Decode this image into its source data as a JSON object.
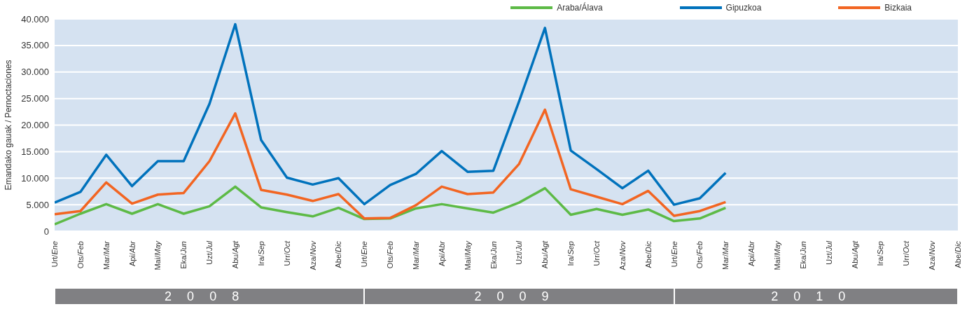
{
  "chart_data": {
    "type": "line",
    "ylabel": "Emandako gauak / Pernoctaciones",
    "categories": [
      "Urt/Ene",
      "Ots/Feb",
      "Mar/Mar",
      "Api/Abr",
      "Mai/May",
      "Eka/Jun",
      "Uzt/Jul",
      "Abu/Agt",
      "Ira/Sep",
      "Urr/Oct",
      "Aza/Nov",
      "Abe/Dic",
      "Urt/Ene",
      "Ots/Feb",
      "Mar/Mar",
      "Api/Abr",
      "Mai/May",
      "Eka/Jun",
      "Uzt/Jul",
      "Abu/Agt",
      "Ira/Sep",
      "Urr/Oct",
      "Aza/Nov",
      "Abe/Dic",
      "Urt/Ene",
      "Ots/Feb",
      "Mar/Mar",
      "Api/Abr",
      "Mai/May",
      "Eka/Jun",
      "Uzt/Jul",
      "Abu/Agt",
      "Ira/Sep",
      "Urr/Oct",
      "Aza/Nov",
      "Abe/Dic"
    ],
    "series": [
      {
        "name": "Araba/Álava",
        "color": "#5dba46",
        "values": [
          1300,
          3300,
          5100,
          3300,
          5100,
          3300,
          4700,
          8400,
          4500,
          3600,
          2800,
          4400,
          2300,
          2400,
          4300,
          5100,
          4300,
          3500,
          5400,
          8100,
          3100,
          4200,
          3100,
          4100,
          1900,
          2400,
          4400,
          null,
          null,
          null,
          null,
          null,
          null,
          null,
          null,
          null
        ]
      },
      {
        "name": "Gipuzkoa",
        "color": "#0072bc",
        "values": [
          5400,
          7400,
          14400,
          8500,
          13200,
          13200,
          24000,
          39000,
          17200,
          10100,
          8800,
          10000,
          5100,
          8700,
          10800,
          15100,
          11200,
          11400,
          24500,
          38300,
          15200,
          11700,
          8100,
          11400,
          5000,
          6200,
          11000,
          null,
          null,
          null,
          null,
          null,
          null,
          null,
          null,
          null
        ]
      },
      {
        "name": "Bizkaia",
        "color": "#f26522",
        "values": [
          3200,
          3800,
          9200,
          5200,
          6900,
          7200,
          13200,
          22200,
          7800,
          6900,
          5700,
          7000,
          2400,
          2500,
          4900,
          8400,
          7000,
          7300,
          12700,
          22900,
          7900,
          6500,
          5100,
          7600,
          2900,
          3800,
          5500,
          null,
          null,
          null,
          null,
          null,
          null,
          null,
          null,
          null
        ]
      }
    ],
    "ylim": [
      0,
      40000
    ],
    "yticks": [
      {
        "value": 0,
        "label": "0"
      },
      {
        "value": 5000,
        "label": "5.000"
      },
      {
        "value": 10000,
        "label": "10.000"
      },
      {
        "value": 15000,
        "label": "15.000"
      },
      {
        "value": 20000,
        "label": "20.000"
      },
      {
        "value": 25000,
        "label": "25.000"
      },
      {
        "value": 30000,
        "label": "30.000"
      },
      {
        "value": 35000,
        "label": "35.000"
      },
      {
        "value": 40000,
        "label": "40.000"
      }
    ],
    "annotations": [
      "2008",
      "2009",
      "2010"
    ],
    "grid": "y",
    "legend": "top right",
    "marker": "none",
    "line_style": "solid"
  }
}
